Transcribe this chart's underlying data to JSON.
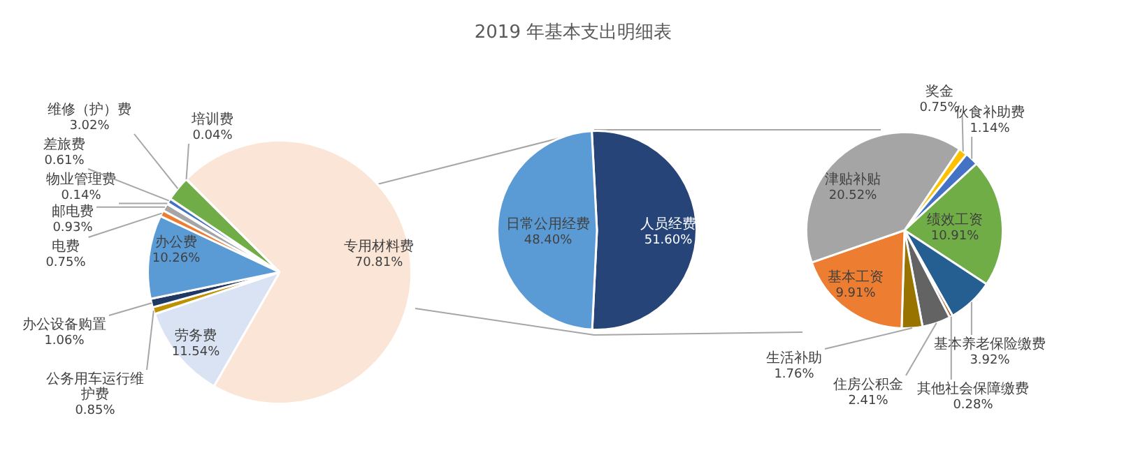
{
  "chart_data": [
    {
      "type": "pie",
      "categories": [
        "专用材料费",
        "劳务费",
        "公务用车运行维护费",
        "办公设备购置",
        "办公费",
        "电费",
        "邮电费",
        "物业管理费",
        "差旅费",
        "维修（护）费",
        "培训费"
      ],
      "values": [
        70.81,
        11.54,
        0.85,
        1.06,
        10.26,
        0.75,
        0.93,
        0.14,
        0.61,
        3.02,
        0.04
      ],
      "colors": [
        "#fbe5d6",
        "#dae3f3",
        "#bf9000",
        "#203864",
        "#5b9bd5",
        "#ed7d31",
        "#a5a5a5",
        "#ffc000",
        "#4472c4",
        "#70ad47",
        "#255e91"
      ],
      "value_labels": [
        "70.81%",
        "11.54%",
        "0.85%",
        "1.06%",
        "10.26%",
        "0.75%",
        "0.93%",
        "0.14%",
        "0.61%",
        "3.02%",
        "0.04%"
      ]
    },
    {
      "type": "pie",
      "title": "2019 年基本支出明细表",
      "categories": [
        "人员经费",
        "日常公用经费"
      ],
      "values": [
        51.6,
        48.4
      ],
      "colors": [
        "#264478",
        "#5b9bd5"
      ],
      "value_labels": [
        "51.60%",
        "48.40%"
      ]
    },
    {
      "type": "pie",
      "categories": [
        "奖金",
        "伙食补助费",
        "绩效工资",
        "基本养老保险缴费",
        "其他社会保障缴费",
        "住房公积金",
        "生活补助",
        "基本工资",
        "津贴补贴"
      ],
      "values": [
        0.75,
        1.14,
        10.91,
        3.92,
        0.28,
        2.41,
        1.76,
        9.91,
        20.52
      ],
      "colors": [
        "#ffc000",
        "#4472c4",
        "#70ad47",
        "#255e91",
        "#9e480e",
        "#636363",
        "#997300",
        "#ed7d31",
        "#a5a5a5"
      ],
      "value_labels": [
        "0.75%",
        "1.14%",
        "10.91%",
        "3.92%",
        "0.28%",
        "2.41%",
        "1.76%",
        "9.91%",
        "20.52%"
      ]
    }
  ]
}
